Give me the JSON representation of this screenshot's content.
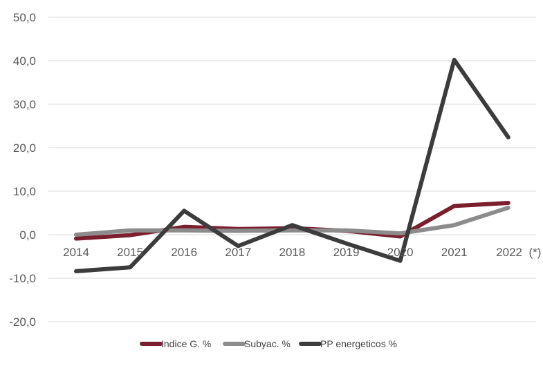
{
  "chart_data": {
    "type": "line",
    "categories": [
      "2014",
      "2015",
      "2016",
      "2017",
      "2018",
      "2019",
      "2020",
      "2021",
      "2022  (*)"
    ],
    "series": [
      {
        "name": "Indice G. %",
        "color": "#7B1E2E",
        "values": [
          -0.9,
          -0.1,
          1.8,
          1.3,
          1.5,
          0.9,
          -0.4,
          6.6,
          7.3
        ]
      },
      {
        "name": "Subyac. %",
        "color": "#8C8C8C",
        "values": [
          0.0,
          1.0,
          1.0,
          0.9,
          1.0,
          1.0,
          0.3,
          2.2,
          6.2
        ]
      },
      {
        "name": "PP energeticos %",
        "color": "#3C3C3C",
        "values": [
          -8.4,
          -7.5,
          5.5,
          -2.6,
          2.2,
          -2.0,
          -6.0,
          40.2,
          22.4
        ]
      }
    ],
    "yticks": [
      "50,0",
      "40,0",
      "30,0",
      "20,0",
      "10,0",
      "0,0",
      "-10,0",
      "-20,0"
    ],
    "ylim": [
      -20,
      50
    ],
    "grid": true,
    "legend_position": "bottom",
    "title": "",
    "xlabel": "",
    "ylabel": ""
  }
}
